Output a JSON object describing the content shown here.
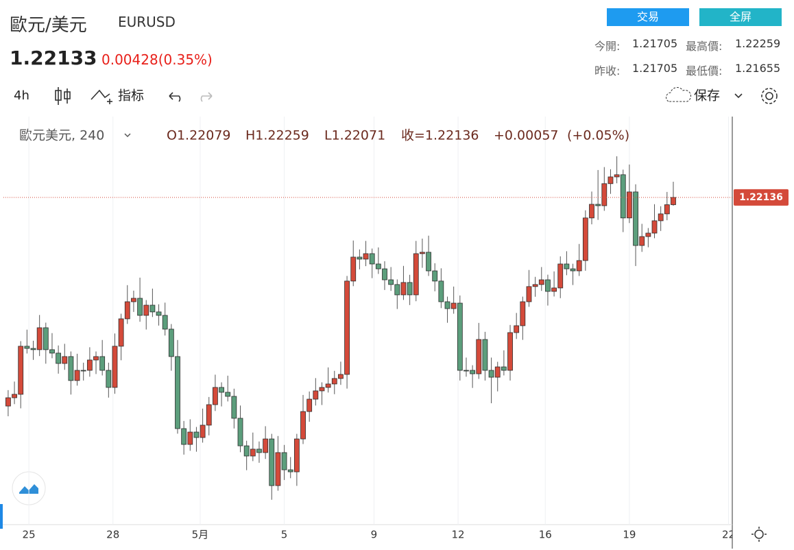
{
  "header": {
    "name": "歐元/美元",
    "symbol": "EURUSD",
    "price": "1.22133",
    "change": "0.00428(0.35%)",
    "buttons": [
      "交易",
      "全屏"
    ],
    "stats": [
      [
        "今開:",
        "1.21705",
        "最高價:",
        "1.22259"
      ],
      [
        "昨收:",
        "1.21705",
        "最低價:",
        "1.21655"
      ]
    ]
  },
  "toolbar": {
    "interval": "4h",
    "indicators": "指标",
    "save": "保存"
  },
  "chart_data": {
    "type": "candlestick",
    "legend": {
      "symbol": "歐元美元, 240",
      "items": [
        "O1.22079",
        "H1.22259",
        "L1.22071",
        "收=1.22136",
        "+0.00057",
        "(+0.05%)"
      ]
    },
    "up_color": "#d44a3a",
    "down_color": "#5c9e7c",
    "price_line_color": "#d44a3a",
    "open": [
      1.205,
      1.20565,
      1.20592,
      1.20969,
      1.20952,
      1.20942,
      1.21114,
      1.20942,
      1.20915,
      1.20834,
      1.20888,
      1.207,
      1.2078,
      1.2078,
      1.20861,
      1.20888,
      1.2078,
      1.20646,
      1.20969,
      1.21184,
      1.21318,
      1.21345,
      1.21211,
      1.21291,
      1.21238,
      1.21211,
      1.21103,
      1.20888,
      1.20323,
      1.20199,
      1.20296,
      1.20253,
      1.2035,
      1.20511,
      1.20646,
      1.20608,
      1.20576,
      1.20404,
      1.20188,
      1.20108,
      1.20162,
      1.20135,
      1.20242,
      1.19876,
      1.20135,
      1.2,
      1.19984,
      1.20242,
      1.20457,
      1.20554,
      1.20619,
      1.20646,
      1.20673,
      1.20716,
      1.20748,
      1.2148,
      1.21668,
      1.21652,
      1.21695,
      1.21614,
      1.21576,
      1.2149,
      1.21453,
      1.21372,
      1.21469,
      1.21372,
      1.21695,
      1.21706,
      1.2156,
      1.2148,
      1.21318,
      1.21264,
      1.21307,
      1.2078,
      1.2078,
      1.20753,
      1.21022,
      1.2078,
      1.20726,
      1.20807,
      1.2078,
      1.21076,
      1.2113,
      1.21318,
      1.21437,
      1.21453,
      1.2149,
      1.21399,
      1.21426,
      1.21614,
      1.21576,
      1.2156,
      1.21641,
      1.21975,
      1.22082,
      1.22071,
      1.22244,
      1.22297,
      1.22314,
      1.21975,
      1.22179,
      1.21759,
      1.21829,
      1.21856,
      1.21953,
      1.22007,
      1.22079
    ],
    "high": [
      1.20625,
      1.20692,
      1.21009,
      1.21099,
      1.21012,
      1.21214,
      1.21154,
      1.21072,
      1.20975,
      1.20988,
      1.20928,
      1.2091,
      1.2084,
      1.20961,
      1.20928,
      1.21018,
      1.2084,
      1.21069,
      1.21224,
      1.21448,
      1.21405,
      1.21507,
      1.21331,
      1.21421,
      1.21298,
      1.21311,
      1.21143,
      1.21018,
      1.20383,
      1.20396,
      1.20336,
      1.2048,
      1.20571,
      1.20746,
      1.20686,
      1.20738,
      1.20636,
      1.20504,
      1.20228,
      1.20292,
      1.20222,
      1.20342,
      1.20282,
      1.20265,
      1.20195,
      1.201,
      1.20282,
      1.20587,
      1.20614,
      1.20719,
      1.20686,
      1.20803,
      1.20776,
      1.20848,
      1.2152,
      1.21798,
      1.21728,
      1.21795,
      1.21735,
      1.21744,
      1.21636,
      1.2159,
      1.21493,
      1.21599,
      1.21529,
      1.21795,
      1.21813,
      1.21836,
      1.2162,
      1.2158,
      1.21358,
      1.21437,
      1.21367,
      1.2088,
      1.2082,
      1.21152,
      1.21082,
      1.2088,
      1.20847,
      1.20937,
      1.21136,
      1.2123,
      1.21358,
      1.21567,
      1.21513,
      1.2159,
      1.2153,
      1.21556,
      1.21674,
      1.21714,
      1.21616,
      1.21771,
      1.22035,
      1.22182,
      1.22351,
      1.22374,
      1.22357,
      1.22459,
      1.22354,
      1.22394,
      1.22239,
      1.21929,
      1.21896,
      1.22083,
      1.22067,
      1.22179,
      1.22259
    ],
    "low": [
      1.2042,
      1.20515,
      1.20482,
      1.20912,
      1.20862,
      1.20892,
      1.20832,
      1.20875,
      1.20754,
      1.20784,
      1.2059,
      1.2066,
      1.207,
      1.2073,
      1.20751,
      1.2074,
      1.20566,
      1.20596,
      1.20859,
      1.21144,
      1.21238,
      1.21161,
      1.211,
      1.21198,
      1.21131,
      1.21053,
      1.20777,
      1.20283,
      1.20119,
      1.20149,
      1.20142,
      1.20213,
      1.2027,
      1.20461,
      1.20497,
      1.20536,
      1.20324,
      1.20138,
      1.19997,
      1.20068,
      1.20055,
      1.20085,
      1.19765,
      1.19836,
      1.1992,
      1.19934,
      1.19874,
      1.20202,
      1.20377,
      1.20504,
      1.20508,
      1.20606,
      1.20593,
      1.20666,
      1.20637,
      1.2144,
      1.21572,
      1.21597,
      1.21503,
      1.21536,
      1.2141,
      1.21403,
      1.21261,
      1.21332,
      1.21292,
      1.21322,
      1.21584,
      1.2152,
      1.214,
      1.21268,
      1.21153,
      1.21224,
      1.207,
      1.2073,
      1.20642,
      1.20713,
      1.207,
      1.20522,
      1.20615,
      1.2074,
      1.207,
      1.21026,
      1.21019,
      1.21278,
      1.21357,
      1.21403,
      1.21288,
      1.21359,
      1.21346,
      1.21526,
      1.21449,
      1.2152,
      1.21561,
      1.21925,
      1.2196,
      1.22031,
      1.22164,
      1.22247,
      1.21864,
      1.21935,
      1.21598,
      1.21709,
      1.21745,
      1.21816,
      1.21873,
      1.21957,
      1.22071
    ],
    "close": [
      1.20565,
      1.20592,
      1.20969,
      1.20952,
      1.20942,
      1.21114,
      1.20942,
      1.20915,
      1.20834,
      1.20888,
      1.207,
      1.2078,
      1.2078,
      1.20861,
      1.20888,
      1.2078,
      1.20646,
      1.20969,
      1.21184,
      1.21318,
      1.21345,
      1.21211,
      1.21291,
      1.21238,
      1.21211,
      1.21103,
      1.20888,
      1.20323,
      1.20199,
      1.20296,
      1.20253,
      1.2035,
      1.20511,
      1.20646,
      1.20608,
      1.20576,
      1.20404,
      1.20188,
      1.20108,
      1.20162,
      1.20135,
      1.20242,
      1.19876,
      1.20135,
      1.2,
      1.19984,
      1.20242,
      1.20457,
      1.20554,
      1.20619,
      1.20646,
      1.20673,
      1.20716,
      1.20748,
      1.2148,
      1.21668,
      1.21652,
      1.21695,
      1.21614,
      1.21576,
      1.2149,
      1.21453,
      1.21372,
      1.21469,
      1.21372,
      1.21695,
      1.21706,
      1.2156,
      1.2148,
      1.21318,
      1.21264,
      1.21307,
      1.2078,
      1.2078,
      1.20753,
      1.21022,
      1.2078,
      1.20726,
      1.20807,
      1.2078,
      1.21076,
      1.2113,
      1.21318,
      1.21437,
      1.21453,
      1.2149,
      1.21399,
      1.21426,
      1.21614,
      1.21576,
      1.2156,
      1.21641,
      1.21975,
      1.22082,
      1.22071,
      1.22244,
      1.22297,
      1.22314,
      1.21975,
      1.22179,
      1.21759,
      1.21829,
      1.21856,
      1.21953,
      1.22007,
      1.22079,
      1.22136
    ],
    "xlim": [
      -1.3,
      115.4
    ],
    "ylim": [
      1.1957,
      1.2277
    ],
    "xticks": [
      {
        "value": 3.3,
        "label": "25"
      },
      {
        "value": 16.7,
        "label": "28"
      },
      {
        "value": 30.6,
        "label": "5月"
      },
      {
        "value": 44,
        "label": "5"
      },
      {
        "value": 58.3,
        "label": "9"
      },
      {
        "value": 71.7,
        "label": "12"
      },
      {
        "value": 85.6,
        "label": "16"
      },
      {
        "value": 99,
        "label": "19"
      },
      {
        "value": 114.8,
        "label": "22"
      }
    ],
    "grid": "vertical"
  }
}
